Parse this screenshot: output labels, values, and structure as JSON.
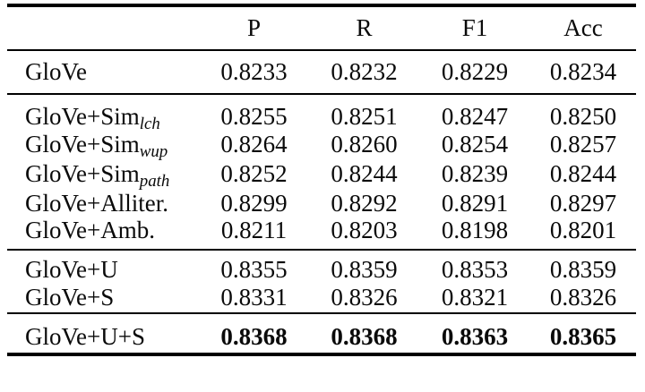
{
  "page": {
    "background": "#ffffff",
    "text_color": "#0a0a0a",
    "rule_color": "#000000"
  },
  "chart_data": {
    "type": "table",
    "title": "",
    "columns": [
      "P",
      "R",
      "F1",
      "Acc"
    ],
    "row_header_label": "",
    "groups": [
      {
        "rows": [
          {
            "label": "GloVe",
            "sub": "",
            "bold": false,
            "values": [
              "0.8233",
              "0.8232",
              "0.8229",
              "0.8234"
            ]
          }
        ]
      },
      {
        "rows": [
          {
            "label": "GloVe+Sim",
            "sub": "lch",
            "bold": false,
            "values": [
              "0.8255",
              "0.8251",
              "0.8247",
              "0.8250"
            ]
          },
          {
            "label": "GloVe+Sim",
            "sub": "wup",
            "bold": false,
            "values": [
              "0.8264",
              "0.8260",
              "0.8254",
              "0.8257"
            ]
          },
          {
            "label": "GloVe+Sim",
            "sub": "path",
            "bold": false,
            "values": [
              "0.8252",
              "0.8244",
              "0.8239",
              "0.8244"
            ]
          },
          {
            "label": "GloVe+Alliter.",
            "sub": "",
            "bold": false,
            "values": [
              "0.8299",
              "0.8292",
              "0.8291",
              "0.8297"
            ]
          },
          {
            "label": "GloVe+Amb.",
            "sub": "",
            "bold": false,
            "values": [
              "0.8211",
              "0.8203",
              "0.8198",
              "0.8201"
            ]
          }
        ]
      },
      {
        "rows": [
          {
            "label": "GloVe+U",
            "sub": "",
            "bold": false,
            "values": [
              "0.8355",
              "0.8359",
              "0.8353",
              "0.8359"
            ]
          },
          {
            "label": "GloVe+S",
            "sub": "",
            "bold": false,
            "values": [
              "0.8331",
              "0.8326",
              "0.8321",
              "0.8326"
            ]
          }
        ]
      },
      {
        "rows": [
          {
            "label": "GloVe+U+S",
            "sub": "",
            "bold": true,
            "values": [
              "0.8368",
              "0.8368",
              "0.8363",
              "0.8365"
            ]
          }
        ]
      }
    ]
  }
}
